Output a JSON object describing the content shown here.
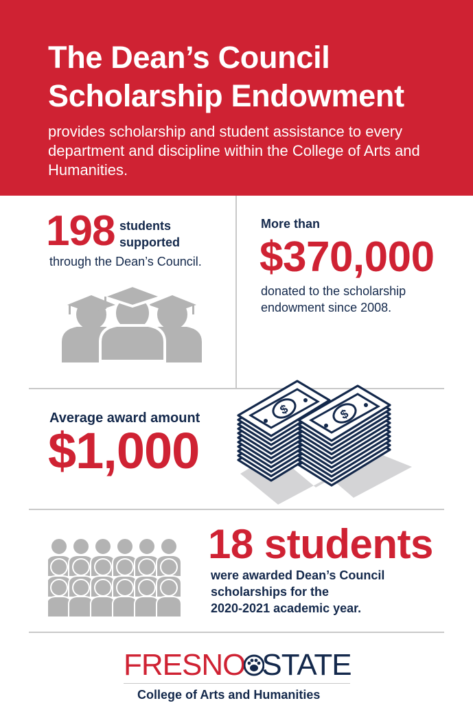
{
  "header": {
    "title_line1": "The Dean’s Council",
    "title_line2": "Scholarship Endowment",
    "subtitle": "provides scholarship and student assistance to every department and discipline within the College of Arts and Humanities."
  },
  "stat_students_supported": {
    "number": "198",
    "label_line1": "students",
    "label_line2": "supported",
    "caption": "through the Dean’s Council."
  },
  "stat_donated": {
    "intro": "More than",
    "amount": "$370,000",
    "caption_line1": "donated to the scholarship",
    "caption_line2": "endowment since 2008."
  },
  "stat_average": {
    "label": "Average award amount",
    "amount": "$1,000"
  },
  "stat_awarded": {
    "headline": "18 students",
    "caption_line1": "were awarded Dean’s Council",
    "caption_line2": "scholarships for the",
    "caption_line3": "2020-2021 academic year."
  },
  "footer": {
    "logo_left": "FRESNO",
    "logo_right": "STATE",
    "college": "College of Arts and Humanities"
  },
  "colors": {
    "red": "#cf2233",
    "navy": "#13284b",
    "gray": "#b3b3b3"
  },
  "icons": [
    "graduates-icon",
    "money-stacks-icon",
    "people-crowd-icon",
    "paw-icon"
  ]
}
